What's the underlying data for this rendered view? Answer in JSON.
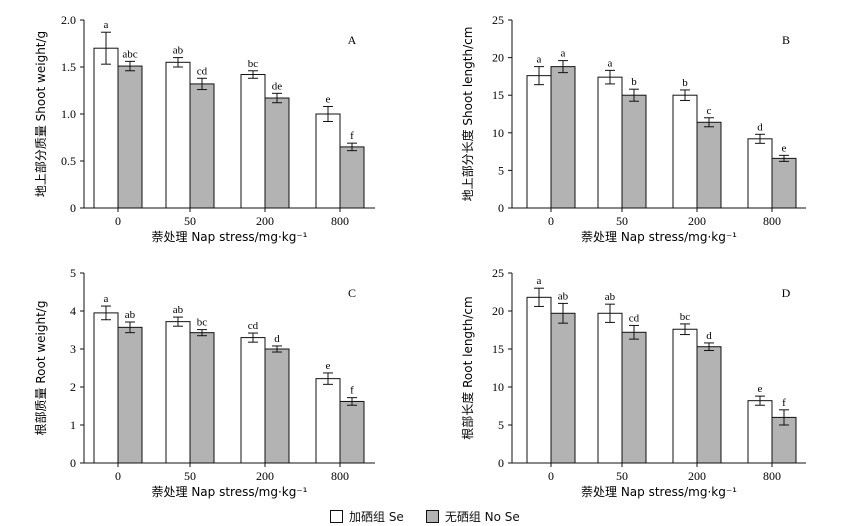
{
  "colors": {
    "se": "#ffffff",
    "nose": "#b3b3b3",
    "stroke": "#111111"
  },
  "legend": {
    "se": "加硒组 Se",
    "nose": "无硒组 No Se"
  },
  "chart_data": [
    {
      "type": "bar",
      "panel": "A",
      "ylabel": "地上部分质量 Shoot weight/g",
      "xlabel": "萘处理 Nap stress/mg·kg⁻¹",
      "categories": [
        "0",
        "50",
        "200",
        "800"
      ],
      "ylim": [
        0,
        2.0
      ],
      "yticks": [
        "0",
        "0.5",
        "1.0",
        "1.5",
        "2.0"
      ],
      "series": [
        {
          "name": "加硒组 Se",
          "values": [
            1.7,
            1.55,
            1.42,
            1.0
          ],
          "errors": [
            0.17,
            0.05,
            0.04,
            0.08
          ],
          "letters": [
            "a",
            "ab",
            "bc",
            "e"
          ]
        },
        {
          "name": "无硒组 No Se",
          "values": [
            1.51,
            1.32,
            1.17,
            0.65
          ],
          "errors": [
            0.05,
            0.06,
            0.05,
            0.04
          ],
          "letters": [
            "abc",
            "cd",
            "de",
            "f"
          ]
        }
      ]
    },
    {
      "type": "bar",
      "panel": "B",
      "ylabel": "地上部分长度 Shoot length/cm",
      "xlabel": "萘处理 Nap stress/mg·kg⁻¹",
      "categories": [
        "0",
        "50",
        "200",
        "800"
      ],
      "ylim": [
        0,
        25
      ],
      "yticks": [
        "0",
        "5",
        "10",
        "15",
        "20",
        "25"
      ],
      "series": [
        {
          "name": "加硒组 Se",
          "values": [
            17.6,
            17.4,
            15.0,
            9.2
          ],
          "errors": [
            1.2,
            0.9,
            0.7,
            0.6
          ],
          "letters": [
            "a",
            "a",
            "b",
            "d"
          ]
        },
        {
          "name": "无硒组 No Se",
          "values": [
            18.8,
            15.0,
            11.4,
            6.6
          ],
          "errors": [
            0.8,
            0.8,
            0.6,
            0.4
          ],
          "letters": [
            "a",
            "b",
            "c",
            "e"
          ]
        }
      ]
    },
    {
      "type": "bar",
      "panel": "C",
      "ylabel": "根部质量 Root weight/g",
      "xlabel": "萘处理 Nap stress/mg·kg⁻¹",
      "categories": [
        "0",
        "50",
        "200",
        "800"
      ],
      "ylim": [
        0,
        5
      ],
      "yticks": [
        "0",
        "1",
        "2",
        "3",
        "4",
        "5"
      ],
      "series": [
        {
          "name": "加硒组 Se",
          "values": [
            3.95,
            3.72,
            3.3,
            2.22
          ],
          "errors": [
            0.18,
            0.12,
            0.12,
            0.15
          ],
          "letters": [
            "a",
            "ab",
            "cd",
            "e"
          ]
        },
        {
          "name": "无硒组 No Se",
          "values": [
            3.57,
            3.43,
            3.0,
            1.62
          ],
          "errors": [
            0.14,
            0.08,
            0.08,
            0.1
          ],
          "letters": [
            "ab",
            "bc",
            "d",
            "f"
          ]
        }
      ]
    },
    {
      "type": "bar",
      "panel": "D",
      "ylabel": "根部长度 Root length/cm",
      "xlabel": "萘处理 Nap stress/mg·kg⁻¹",
      "categories": [
        "0",
        "50",
        "200",
        "800"
      ],
      "ylim": [
        0,
        25
      ],
      "yticks": [
        "0",
        "5",
        "10",
        "15",
        "20",
        "25"
      ],
      "series": [
        {
          "name": "加硒组 Se",
          "values": [
            21.8,
            19.7,
            17.6,
            8.2
          ],
          "errors": [
            1.2,
            1.2,
            0.7,
            0.6
          ],
          "letters": [
            "a",
            "ab",
            "bc",
            "e"
          ]
        },
        {
          "name": "无硒组 No Se",
          "values": [
            19.7,
            17.2,
            15.3,
            6.0
          ],
          "errors": [
            1.3,
            0.9,
            0.5,
            1.0
          ],
          "letters": [
            "ab",
            "cd",
            "d",
            "f"
          ]
        }
      ]
    }
  ]
}
